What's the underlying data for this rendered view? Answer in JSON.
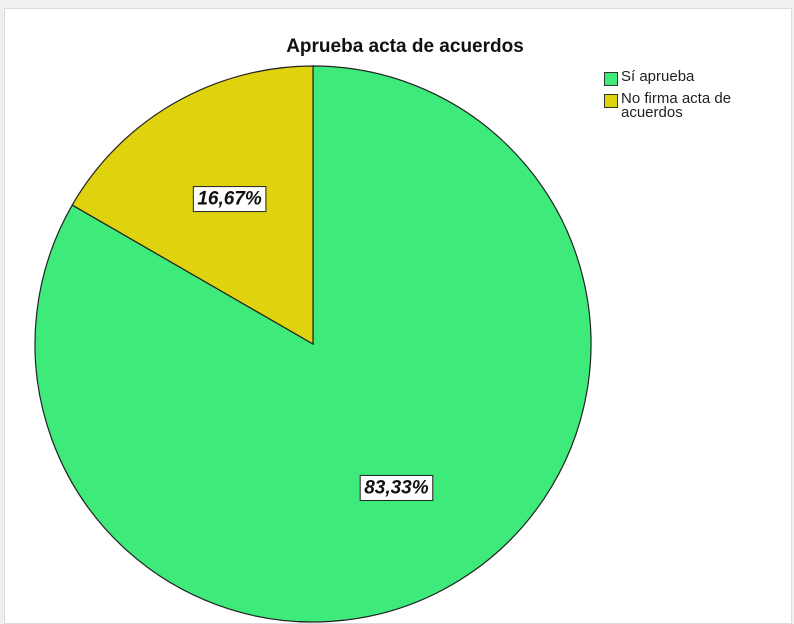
{
  "chart_data": {
    "type": "pie",
    "title": "Aprueba acta de acuerdos",
    "categories": [
      "Sí aprueba",
      "No firma acta de acuerdos"
    ],
    "values": [
      83.33,
      16.67
    ],
    "value_labels": [
      "83,33%",
      "16,67%"
    ],
    "colors": [
      "#3dea7a",
      "#dfd30e"
    ],
    "legend": "right"
  }
}
